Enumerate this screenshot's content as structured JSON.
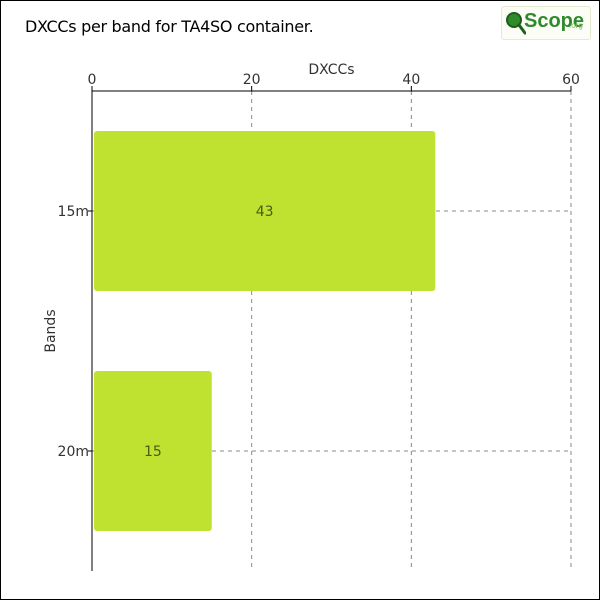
{
  "header": {
    "title": "DXCCs per band for TA4SO container."
  },
  "logo": {
    "text": "Scope",
    "suffix": ".org",
    "icon": "magnifier-q-icon"
  },
  "chart_data": {
    "type": "bar",
    "orientation": "horizontal",
    "title": "DXCCs per band for TA4SO container.",
    "xlabel": "DXCCs",
    "ylabel": "Bands",
    "xlim": [
      0,
      60
    ],
    "x_ticks": [
      0,
      20,
      40,
      60
    ],
    "x_axis_position": "top",
    "grid": true,
    "categories": [
      "15m",
      "20m"
    ],
    "values": [
      43,
      15
    ],
    "bar_color": "#bee22f",
    "label_color": "#4d5a14"
  }
}
